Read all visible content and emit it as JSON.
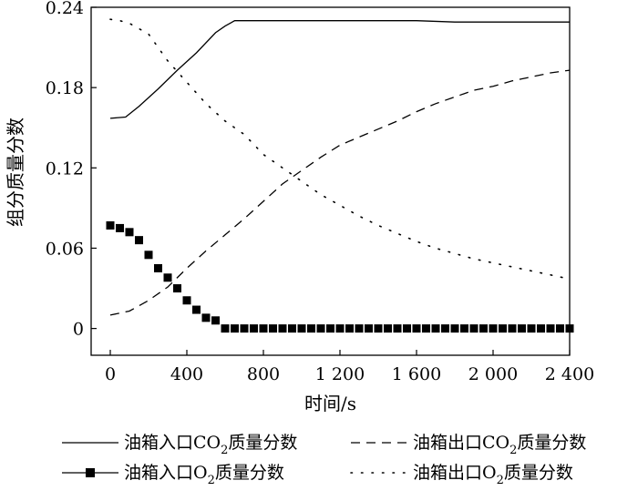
{
  "chart_data": {
    "type": "line",
    "title": "",
    "xlabel": "时间/s",
    "ylabel": "组分质量分数",
    "xlim": [
      -100,
      2400
    ],
    "ylim": [
      -0.02,
      0.24
    ],
    "x_ticks": [
      0,
      400,
      800,
      1200,
      1600,
      2000,
      2400
    ],
    "x_tick_labels": [
      "0",
      "400",
      "800",
      "1 200",
      "1 600",
      "2 000",
      "2 400"
    ],
    "y_ticks": [
      0,
      0.06,
      0.12,
      0.18,
      0.24
    ],
    "y_tick_labels": [
      "0",
      "0.06",
      "0.12",
      "0.18",
      "0.24"
    ],
    "grid": false,
    "legend_position": "bottom",
    "series": [
      {
        "name_prefix": "油箱入口CO",
        "name_sub": "2",
        "name_suffix": "质量分数",
        "style": "solid",
        "x": [
          0,
          80,
          150,
          250,
          350,
          450,
          550,
          600,
          650,
          700,
          900,
          1200,
          1600,
          1800,
          2000,
          2400
        ],
        "y": [
          0.157,
          0.158,
          0.166,
          0.179,
          0.193,
          0.206,
          0.221,
          0.226,
          0.23,
          0.23,
          0.23,
          0.23,
          0.23,
          0.229,
          0.229,
          0.229
        ]
      },
      {
        "name_prefix": "油箱出口CO",
        "name_sub": "2",
        "name_suffix": "质量分数",
        "style": "dashed",
        "x": [
          0,
          100,
          200,
          300,
          400,
          500,
          600,
          700,
          800,
          900,
          1000,
          1100,
          1200,
          1300,
          1400,
          1500,
          1600,
          1700,
          1800,
          1900,
          2000,
          2100,
          2200,
          2300,
          2400
        ],
        "y": [
          0.01,
          0.013,
          0.021,
          0.031,
          0.045,
          0.058,
          0.07,
          0.082,
          0.095,
          0.108,
          0.118,
          0.128,
          0.137,
          0.143,
          0.149,
          0.155,
          0.162,
          0.168,
          0.173,
          0.178,
          0.181,
          0.185,
          0.188,
          0.191,
          0.193
        ]
      },
      {
        "name_prefix": "油箱入口O",
        "name_sub": "2",
        "name_suffix": "质量分数",
        "style": "square-markers",
        "x": [
          0,
          50,
          100,
          150,
          200,
          250,
          300,
          350,
          400,
          450,
          500,
          550,
          600,
          650,
          700,
          750,
          800,
          850,
          900,
          950,
          1000,
          1050,
          1100,
          1150,
          1200,
          1250,
          1300,
          1350,
          1400,
          1450,
          1500,
          1550,
          1600,
          1650,
          1700,
          1750,
          1800,
          1850,
          1900,
          1950,
          2000,
          2050,
          2100,
          2150,
          2200,
          2250,
          2300,
          2350,
          2400
        ],
        "y": [
          0.077,
          0.075,
          0.072,
          0.066,
          0.055,
          0.045,
          0.038,
          0.03,
          0.021,
          0.014,
          0.008,
          0.006,
          0,
          0,
          0,
          0,
          0,
          0,
          0,
          0,
          0,
          0,
          0,
          0,
          0,
          0,
          0,
          0,
          0,
          0,
          0,
          0,
          0,
          0,
          0,
          0,
          0,
          0,
          0,
          0,
          0,
          0,
          0,
          0,
          0,
          0,
          0,
          0,
          0
        ]
      },
      {
        "name_prefix": "油箱出口O",
        "name_sub": "2",
        "name_suffix": "质量分数",
        "style": "dotted",
        "x": [
          0,
          50,
          100,
          200,
          300,
          400,
          500,
          600,
          700,
          800,
          900,
          1000,
          1100,
          1200,
          1300,
          1400,
          1500,
          1600,
          1700,
          1800,
          1900,
          2000,
          2100,
          2200,
          2300,
          2400
        ],
        "y": [
          0.231,
          0.23,
          0.228,
          0.22,
          0.2,
          0.184,
          0.168,
          0.155,
          0.145,
          0.13,
          0.12,
          0.11,
          0.1,
          0.092,
          0.084,
          0.077,
          0.071,
          0.065,
          0.06,
          0.056,
          0.052,
          0.049,
          0.046,
          0.043,
          0.04,
          0.037
        ]
      }
    ]
  }
}
